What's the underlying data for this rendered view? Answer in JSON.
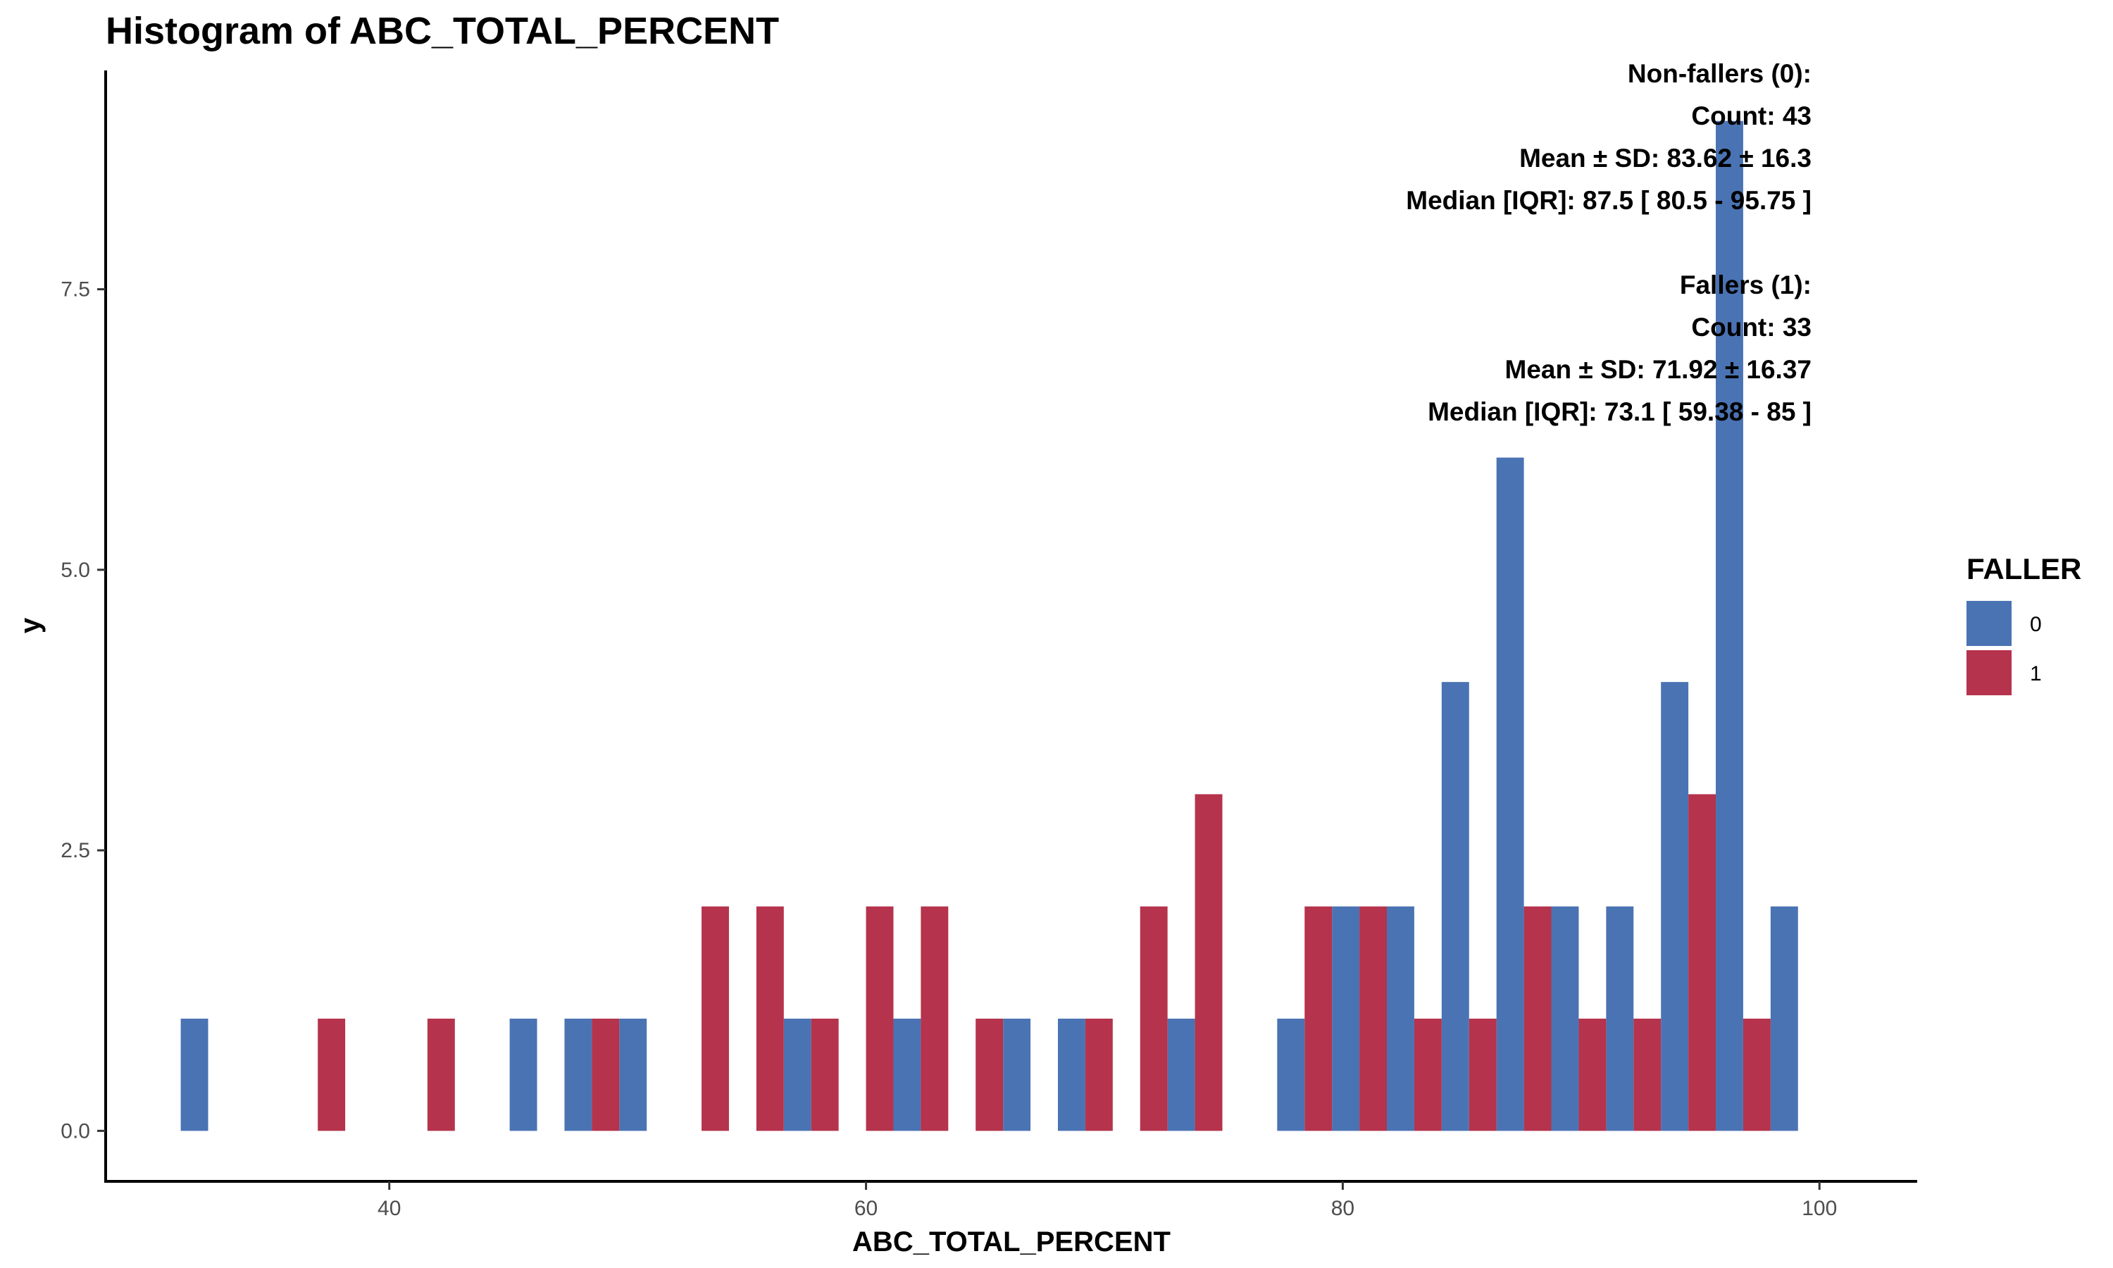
{
  "chart_data": {
    "type": "bar",
    "title": "Histogram of ABC_TOTAL_PERCENT",
    "xlabel": "ABC_TOTAL_PERCENT",
    "ylabel": "y",
    "xlim": [
      28.1,
      104.1
    ],
    "ylim": [
      -0.45,
      9.45
    ],
    "x_ticks": [
      40,
      60,
      80,
      100
    ],
    "y_ticks": [
      0.0,
      2.5,
      5.0,
      7.5
    ],
    "y_tick_labels": [
      "0.0",
      "2.5",
      "5.0",
      "7.5"
    ],
    "bin_width": 2.3,
    "grid": false,
    "legend": {
      "title": "FALLER",
      "position": "right",
      "entries": [
        {
          "label": "0",
          "color": "#4A73B3"
        },
        {
          "label": "1",
          "color": "#B5334C"
        }
      ]
    },
    "series": [
      {
        "name": "0",
        "color": "#4A73B3",
        "bins": [
          {
            "x": 32.4,
            "y": 1
          },
          {
            "x": 46.2,
            "y": 1
          },
          {
            "x": 48.5,
            "y": 1
          },
          {
            "x": 50.8,
            "y": 1
          },
          {
            "x": 57.7,
            "y": 1
          },
          {
            "x": 62.3,
            "y": 1
          },
          {
            "x": 66.9,
            "y": 1
          },
          {
            "x": 69.2,
            "y": 1
          },
          {
            "x": 73.8,
            "y": 1
          },
          {
            "x": 78.4,
            "y": 1
          },
          {
            "x": 80.7,
            "y": 2
          },
          {
            "x": 83.0,
            "y": 2
          },
          {
            "x": 85.3,
            "y": 4
          },
          {
            "x": 87.6,
            "y": 6
          },
          {
            "x": 89.9,
            "y": 2
          },
          {
            "x": 92.2,
            "y": 2
          },
          {
            "x": 94.5,
            "y": 4
          },
          {
            "x": 96.8,
            "y": 9
          },
          {
            "x": 99.1,
            "y": 2
          }
        ]
      },
      {
        "name": "1",
        "color": "#B5334C",
        "bins": [
          {
            "x": 37.0,
            "y": 1
          },
          {
            "x": 41.6,
            "y": 1
          },
          {
            "x": 48.5,
            "y": 1
          },
          {
            "x": 53.1,
            "y": 2
          },
          {
            "x": 55.4,
            "y": 2
          },
          {
            "x": 57.7,
            "y": 1
          },
          {
            "x": 60.0,
            "y": 2
          },
          {
            "x": 62.3,
            "y": 2
          },
          {
            "x": 64.6,
            "y": 1
          },
          {
            "x": 69.2,
            "y": 1
          },
          {
            "x": 71.5,
            "y": 2
          },
          {
            "x": 73.8,
            "y": 3
          },
          {
            "x": 78.4,
            "y": 2
          },
          {
            "x": 80.7,
            "y": 2
          },
          {
            "x": 83.0,
            "y": 1
          },
          {
            "x": 85.3,
            "y": 1
          },
          {
            "x": 87.6,
            "y": 2
          },
          {
            "x": 89.9,
            "y": 1
          },
          {
            "x": 92.2,
            "y": 1
          },
          {
            "x": 94.5,
            "y": 3
          },
          {
            "x": 96.8,
            "y": 1
          }
        ]
      }
    ],
    "annotations": [
      [
        "Non-fallers (0):",
        "Count: 43",
        "Mean ± SD: 83.62 ± 16.3",
        "Median [IQR]: 87.5 [ 80.5 - 95.75 ]"
      ],
      [
        "Fallers (1):",
        "Count: 33",
        "Mean ± SD: 71.92 ± 16.37",
        "Median [IQR]: 73.1 [ 59.38 - 85 ]"
      ]
    ]
  }
}
